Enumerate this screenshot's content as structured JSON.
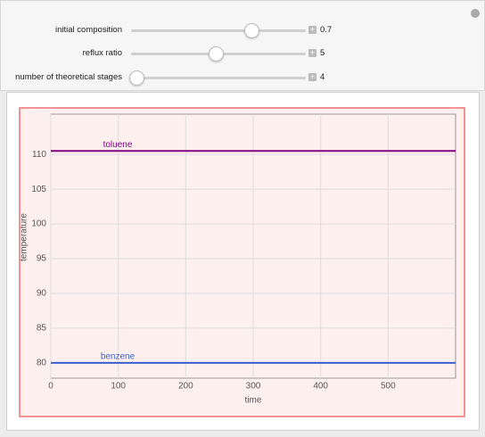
{
  "controls": [
    {
      "label": "initial composition",
      "value": 0.7
    },
    {
      "label": "reflux ratio",
      "value": 5
    },
    {
      "label": "number of theoretical stages",
      "value": 4
    }
  ],
  "chart_data": {
    "type": "line",
    "xlabel": "time",
    "ylabel": "temperature",
    "x": [
      0,
      600
    ],
    "series": [
      {
        "name": "toluene",
        "color": "#800080",
        "values": [
          110.5,
          110.5
        ]
      },
      {
        "name": "benzene",
        "color": "#3a5fcd",
        "values": [
          80.0,
          80.0
        ]
      }
    ],
    "xlim": [
      0,
      600
    ],
    "xticks": [
      0,
      100,
      200,
      300,
      400,
      500
    ],
    "ylim": [
      77.8,
      115.8
    ],
    "yticks": [
      80,
      85,
      90,
      95,
      100,
      105,
      110
    ],
    "grid": true
  }
}
